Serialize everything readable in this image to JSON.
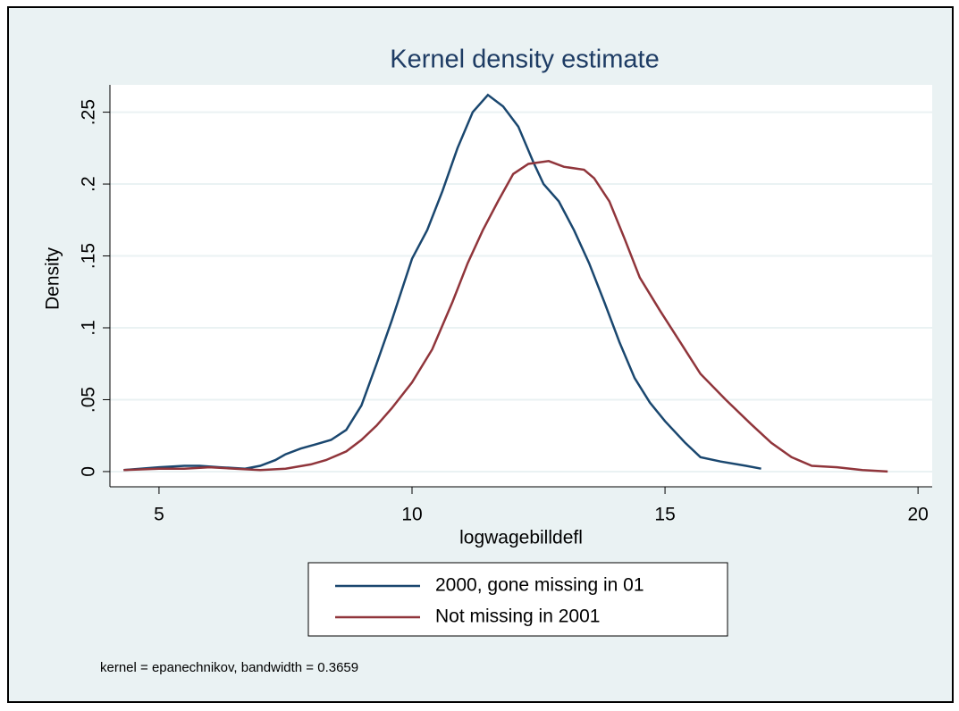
{
  "chart_data": {
    "type": "line",
    "title": "Kernel density estimate",
    "xlabel": "logwagebilldefl",
    "ylabel": "Density",
    "note": "kernel = epanechnikov, bandwidth = 0.3659",
    "xlim": [
      4.03,
      20.28
    ],
    "xticks": [
      5,
      10,
      15,
      20
    ],
    "ylim": [
      -0.0106,
      0.269
    ],
    "yticks": [
      0,
      {
        "value": 0.05,
        "label": ".05"
      },
      {
        "value": 0.1,
        "label": ".1"
      },
      {
        "value": 0.15,
        "label": ".15"
      },
      {
        "value": 0.2,
        "label": ".2"
      },
      {
        "value": 0.25,
        "label": ".25"
      }
    ],
    "grid": true,
    "legend": "bottom",
    "series": [
      {
        "name": "2000, gone missing in 01",
        "color": "#1a476f",
        "x": [
          4.3,
          5.0,
          5.5,
          5.8,
          6.2,
          6.7,
          7.0,
          7.3,
          7.5,
          7.8,
          8.1,
          8.4,
          8.7,
          9.0,
          9.3,
          9.6,
          10.0,
          10.3,
          10.6,
          10.9,
          11.2,
          11.5,
          11.8,
          12.1,
          12.4,
          12.6,
          12.9,
          13.2,
          13.5,
          13.8,
          14.1,
          14.4,
          14.7,
          15.0,
          15.4,
          15.7,
          16.1,
          16.6,
          16.9
        ],
        "values": [
          0.001,
          0.003,
          0.004,
          0.004,
          0.003,
          0.002,
          0.004,
          0.008,
          0.012,
          0.016,
          0.019,
          0.022,
          0.029,
          0.046,
          0.075,
          0.105,
          0.148,
          0.168,
          0.195,
          0.225,
          0.25,
          0.262,
          0.254,
          0.24,
          0.215,
          0.2,
          0.188,
          0.168,
          0.145,
          0.118,
          0.09,
          0.065,
          0.048,
          0.035,
          0.02,
          0.01,
          0.007,
          0.004,
          0.002
        ]
      },
      {
        "name": "Not missing in 2001",
        "color": "#90353b",
        "x": [
          4.3,
          5.0,
          5.5,
          6.0,
          6.5,
          7.0,
          7.5,
          8.0,
          8.3,
          8.7,
          9.0,
          9.3,
          9.6,
          10.0,
          10.4,
          10.8,
          11.1,
          11.4,
          11.7,
          12.0,
          12.3,
          12.7,
          13.0,
          13.4,
          13.6,
          13.9,
          14.2,
          14.5,
          14.9,
          15.3,
          15.7,
          16.2,
          16.7,
          17.1,
          17.5,
          17.9,
          18.4,
          18.9,
          19.4
        ],
        "values": [
          0.001,
          0.002,
          0.002,
          0.003,
          0.002,
          0.001,
          0.002,
          0.005,
          0.008,
          0.014,
          0.022,
          0.032,
          0.044,
          0.062,
          0.085,
          0.118,
          0.145,
          0.168,
          0.188,
          0.207,
          0.214,
          0.216,
          0.212,
          0.21,
          0.204,
          0.188,
          0.162,
          0.135,
          0.112,
          0.09,
          0.068,
          0.05,
          0.033,
          0.02,
          0.01,
          0.004,
          0.003,
          0.001,
          0.0
        ]
      }
    ]
  }
}
